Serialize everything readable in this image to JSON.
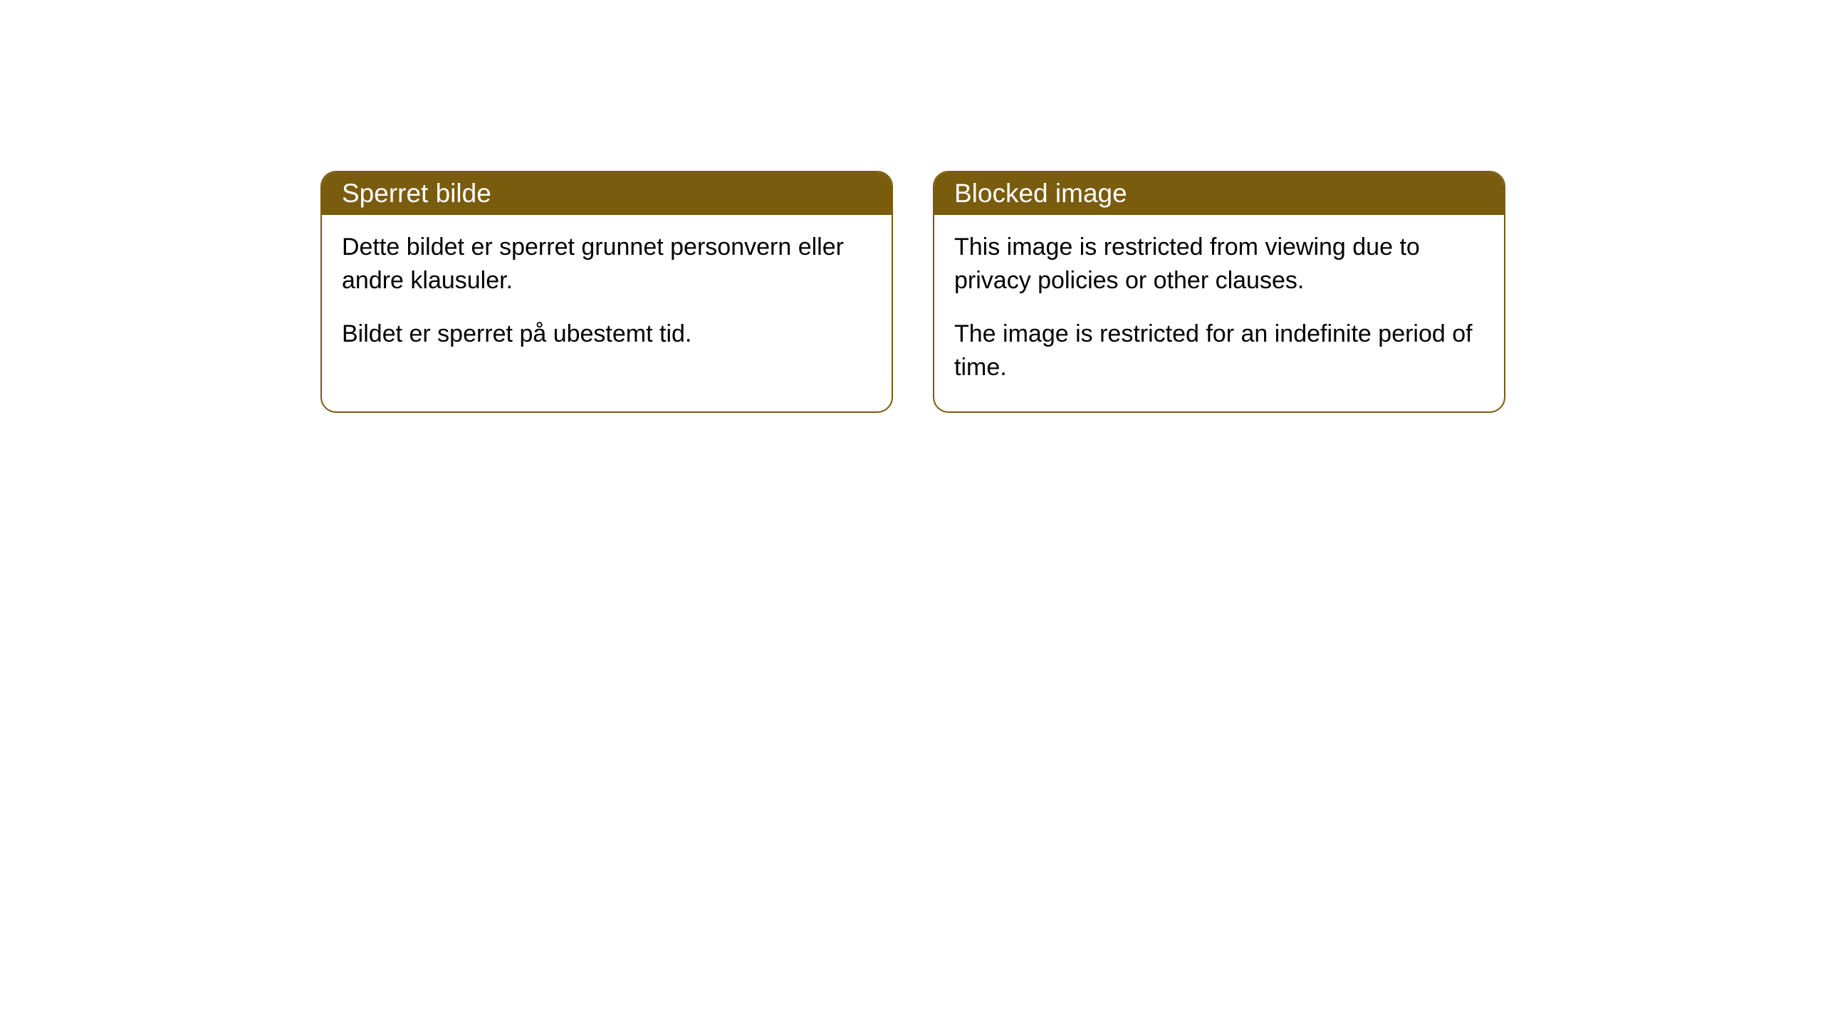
{
  "cards": [
    {
      "title": "Sperret bilde",
      "paragraph1": "Dette bildet er sperret grunnet personvern eller andre klausuler.",
      "paragraph2": "Bildet er sperret på ubestemt tid."
    },
    {
      "title": "Blocked image",
      "paragraph1": "This image is restricted from viewing due to privacy policies or other clauses.",
      "paragraph2": "The image is restricted for an indefinite period of time."
    }
  ],
  "styling": {
    "header_background": "#7a5c0f",
    "header_text_color": "#ffffff",
    "border_color": "#7a5c0f",
    "body_text_color": "#000000",
    "page_background": "#ffffff",
    "border_radius": 22,
    "header_font_size": 37,
    "body_font_size": 34
  }
}
